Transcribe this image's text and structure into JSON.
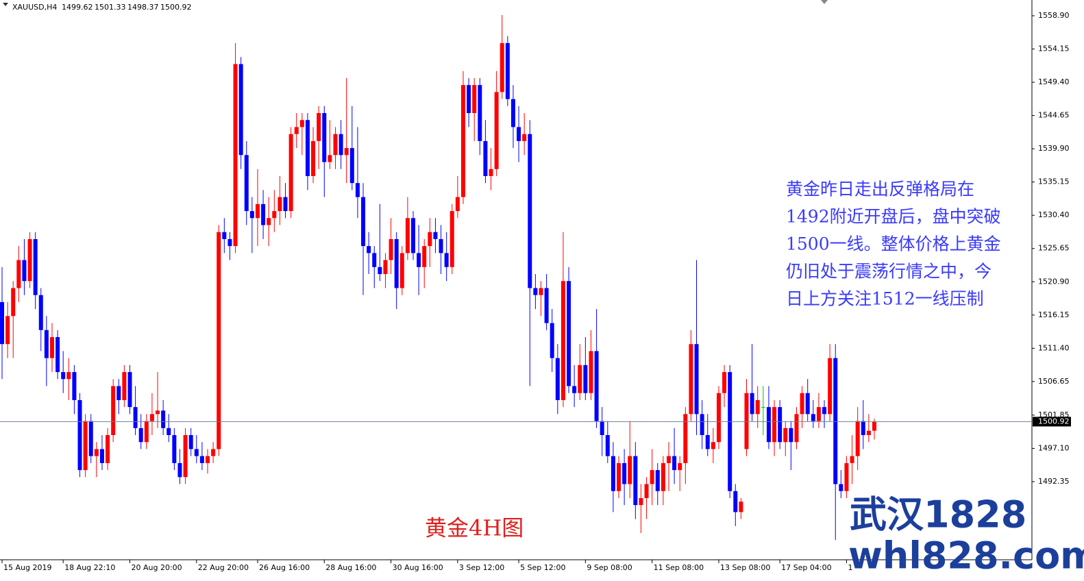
{
  "chart_data": {
    "type": "candlestick",
    "symbol": "XAUUSD,H4",
    "up_color": "#ff0000",
    "down_color": "#0000ff",
    "doji_color": "#00c000",
    "ylim": [
      1481.19,
      1561.15
    ],
    "yticks": [
      {
        "value": 1558.9,
        "label": "1558.90"
      },
      1554.15,
      {
        "value": 1549.4,
        "label": "1549.40"
      },
      1544.65,
      {
        "value": 1539.9,
        "label": "1539.90"
      },
      1535.15,
      {
        "value": 1530.4,
        "label": "1530.40"
      },
      1525.65,
      {
        "value": 1520.9,
        "label": "1520.90"
      },
      1516.15,
      {
        "value": 1511.4,
        "label": "1511.40"
      },
      1506.65,
      1501.85,
      {
        "value": 1497.1,
        "label": "1497.10"
      },
      1492.35
    ],
    "xticks": [
      {
        "value": 0,
        "label": "15 Aug 2019"
      },
      {
        "value": 11,
        "label": "18 Aug 22:10"
      },
      {
        "value": 23,
        "label": "20 Aug 20:00"
      },
      {
        "value": 35,
        "label": "22 Aug 20:00"
      },
      {
        "value": 46,
        "label": "26 Aug 16:00"
      },
      {
        "value": 58,
        "label": "28 Aug 16:00"
      },
      {
        "value": 70,
        "label": "30 Aug 16:00"
      },
      {
        "value": 82,
        "label": "3 Sep 12:00"
      },
      {
        "value": 93,
        "label": "5 Sep 12:00"
      },
      {
        "value": 105,
        "label": "9 Sep 08:00"
      },
      {
        "value": 117,
        "label": "11 Sep 08:00"
      },
      {
        "value": 129,
        "label": "13 Sep 08:00"
      },
      {
        "value": 140,
        "label": "17 Sep 04:00"
      },
      {
        "value": 152,
        "label": "1"
      }
    ],
    "ohlc": [
      [
        1518,
        1523,
        1507,
        1512
      ],
      [
        1512,
        1518,
        1510,
        1516
      ],
      [
        1516,
        1521,
        1510,
        1520
      ],
      [
        1520,
        1526,
        1518,
        1524
      ],
      [
        1524,
        1527,
        1519,
        1521
      ],
      [
        1521,
        1528,
        1520,
        1527
      ],
      [
        1527,
        1528,
        1517,
        1519
      ],
      [
        1519,
        1520,
        1511,
        1514
      ],
      [
        1514,
        1516,
        1506,
        1510
      ],
      [
        1510,
        1515,
        1508,
        1513
      ],
      [
        1513,
        1514,
        1507,
        1508
      ],
      [
        1508,
        1511,
        1505,
        1507
      ],
      [
        1507,
        1510,
        1504,
        1508
      ],
      [
        1508,
        1509,
        1502,
        1504
      ],
      [
        1504,
        1505,
        1493,
        1494
      ],
      [
        1494,
        1502,
        1493,
        1501
      ],
      [
        1501,
        1502,
        1495,
        1496
      ],
      [
        1496,
        1498,
        1493,
        1497
      ],
      [
        1497,
        1499,
        1494,
        1495
      ],
      [
        1495,
        1500,
        1494,
        1499
      ],
      [
        1499,
        1507,
        1498,
        1506
      ],
      [
        1506,
        1507,
        1502,
        1504
      ],
      [
        1504,
        1509,
        1503,
        1508
      ],
      [
        1508,
        1509,
        1502,
        1503
      ],
      [
        1503,
        1506,
        1499,
        1500
      ],
      [
        1500,
        1502,
        1497,
        1498
      ],
      [
        1498,
        1502,
        1497,
        1501
      ],
      [
        1501,
        1505,
        1499,
        1502
      ],
      [
        1502,
        1508,
        1500,
        1502.5
      ],
      [
        1502.5,
        1504,
        1499,
        1500
      ],
      [
        1500,
        1502,
        1498,
        1499
      ],
      [
        1499,
        1500,
        1494,
        1495
      ],
      [
        1495,
        1497,
        1492,
        1493
      ],
      [
        1493,
        1500,
        1492,
        1499
      ],
      [
        1499,
        1500,
        1496,
        1497
      ],
      [
        1497,
        1499,
        1495,
        1496
      ],
      [
        1496,
        1498,
        1494,
        1495
      ],
      [
        1495,
        1497,
        1493.5,
        1496
      ],
      [
        1496,
        1498,
        1495,
        1497
      ],
      [
        1497,
        1529,
        1496,
        1528
      ],
      [
        1528,
        1530,
        1525,
        1527
      ],
      [
        1527,
        1528,
        1524,
        1526
      ],
      [
        1526,
        1555,
        1525,
        1552
      ],
      [
        1552,
        1553,
        1537,
        1539
      ],
      [
        1539,
        1541,
        1529,
        1531
      ],
      [
        1531,
        1533,
        1525,
        1530
      ],
      [
        1530,
        1537,
        1526,
        1532
      ],
      [
        1532,
        1534,
        1527,
        1529
      ],
      [
        1529,
        1533,
        1526,
        1530
      ],
      [
        1530,
        1534,
        1528,
        1531
      ],
      [
        1531,
        1536,
        1529,
        1533
      ],
      [
        1533,
        1535,
        1530,
        1531
      ],
      [
        1531,
        1543,
        1530,
        1542
      ],
      [
        1542,
        1545,
        1540,
        1543
      ],
      [
        1543,
        1545,
        1539,
        1544
      ],
      [
        1544,
        1545,
        1534,
        1536
      ],
      [
        1536,
        1543,
        1535,
        1541
      ],
      [
        1541,
        1546,
        1537,
        1545
      ],
      [
        1545,
        1546,
        1533,
        1538
      ],
      [
        1538,
        1544,
        1537,
        1539
      ],
      [
        1539,
        1543,
        1537,
        1542
      ],
      [
        1542,
        1544,
        1537,
        1539
      ],
      [
        1539,
        1550,
        1535,
        1540
      ],
      [
        1540,
        1546,
        1534,
        1535
      ],
      [
        1535,
        1543,
        1530,
        1533
      ],
      [
        1533,
        1535,
        1519,
        1526
      ],
      [
        1526,
        1528,
        1522,
        1525
      ],
      [
        1525,
        1526,
        1520,
        1523
      ],
      [
        1523,
        1532,
        1521,
        1522
      ],
      [
        1522,
        1525,
        1520,
        1524
      ],
      [
        1524,
        1530,
        1522,
        1527
      ],
      [
        1527,
        1528,
        1517,
        1520
      ],
      [
        1520,
        1526,
        1519,
        1525
      ],
      [
        1525,
        1533,
        1524,
        1530
      ],
      [
        1530,
        1531,
        1524,
        1525
      ],
      [
        1525,
        1529,
        1519,
        1523
      ],
      [
        1523,
        1527,
        1520,
        1526
      ],
      [
        1526,
        1530,
        1523,
        1528
      ],
      [
        1528,
        1530,
        1525,
        1527
      ],
      [
        1527,
        1529,
        1522,
        1525
      ],
      [
        1525,
        1528,
        1521,
        1523
      ],
      [
        1523,
        1532,
        1522,
        1531
      ],
      [
        1531,
        1536,
        1530,
        1533
      ],
      [
        1533,
        1551,
        1532,
        1549
      ],
      [
        1549,
        1550,
        1543,
        1545
      ],
      [
        1545,
        1550,
        1541,
        1549
      ],
      [
        1549,
        1550,
        1539,
        1541
      ],
      [
        1541,
        1544,
        1535,
        1536
      ],
      [
        1536,
        1540,
        1534,
        1537
      ],
      [
        1537,
        1551,
        1536,
        1548
      ],
      [
        1548,
        1559,
        1547,
        1555
      ],
      [
        1555,
        1556,
        1546,
        1547
      ],
      [
        1547,
        1549,
        1540,
        1543
      ],
      [
        1543,
        1546,
        1538,
        1541
      ],
      [
        1541,
        1545,
        1539,
        1542
      ],
      [
        1542,
        1544,
        1506,
        1520
      ],
      [
        1520,
        1522,
        1517,
        1519
      ],
      [
        1519,
        1521,
        1516,
        1520
      ],
      [
        1520,
        1522,
        1514,
        1515
      ],
      [
        1515,
        1517,
        1508,
        1510
      ],
      [
        1510,
        1512,
        1502,
        1504
      ],
      [
        1504,
        1528,
        1503,
        1521
      ],
      [
        1521,
        1523,
        1505,
        1506
      ],
      [
        1506,
        1509,
        1503,
        1505
      ],
      [
        1505,
        1512,
        1504,
        1509
      ],
      [
        1509,
        1513,
        1504,
        1505
      ],
      [
        1505,
        1514,
        1504,
        1511
      ],
      [
        1511,
        1517,
        1500,
        1501
      ],
      [
        1501,
        1503,
        1496,
        1499
      ],
      [
        1499,
        1501,
        1495,
        1496
      ],
      [
        1496,
        1498,
        1488,
        1491
      ],
      [
        1491,
        1496,
        1490,
        1495
      ],
      [
        1495,
        1497,
        1489,
        1492
      ],
      [
        1492,
        1501,
        1490,
        1496
      ],
      [
        1496,
        1498,
        1487,
        1489
      ],
      [
        1489,
        1492,
        1485,
        1490
      ],
      [
        1490,
        1493,
        1487,
        1492
      ],
      [
        1492,
        1497,
        1489,
        1494
      ],
      [
        1494,
        1495,
        1489,
        1491
      ],
      [
        1491,
        1496,
        1489,
        1495
      ],
      [
        1495,
        1498,
        1491,
        1496
      ],
      [
        1496,
        1500,
        1492,
        1494
      ],
      [
        1494,
        1496,
        1491,
        1495
      ],
      [
        1495,
        1503,
        1492,
        1502
      ],
      [
        1502,
        1514,
        1501,
        1512
      ],
      [
        1512,
        1524,
        1499,
        1502
      ],
      [
        1502,
        1504,
        1497,
        1499
      ],
      [
        1499,
        1502,
        1496,
        1497
      ],
      [
        1497,
        1500,
        1495,
        1498
      ],
      [
        1498,
        1506,
        1497,
        1505
      ],
      [
        1505,
        1509,
        1503,
        1508
      ],
      [
        1508,
        1509,
        1490,
        1491
      ],
      [
        1491,
        1492,
        1486,
        1488
      ],
      [
        1488,
        1490,
        1487,
        1489.5
      ],
      [
        1497,
        1507,
        1496,
        1505
      ],
      [
        1505,
        1512,
        1501,
        1502
      ],
      [
        1502,
        1506,
        1500,
        1504
      ],
      [
        1503,
        1506,
        1499,
        1503
      ],
      [
        1503,
        1506,
        1497,
        1498
      ],
      [
        1498,
        1504,
        1496,
        1503
      ],
      [
        1503,
        1504,
        1497,
        1498
      ],
      [
        1498,
        1501,
        1496,
        1500
      ],
      [
        1500,
        1501,
        1494,
        1498
      ],
      [
        1498,
        1503,
        1497,
        1502
      ],
      [
        1502,
        1506,
        1500,
        1505
      ],
      [
        1505,
        1507,
        1501,
        1502
      ],
      [
        1502,
        1504,
        1500,
        1501
      ],
      [
        1501,
        1505,
        1500,
        1503
      ],
      [
        1503,
        1504,
        1500,
        1502
      ],
      [
        1502,
        1512,
        1501,
        1510
      ],
      [
        1510,
        1512,
        1484,
        1492
      ],
      [
        1492,
        1494,
        1490,
        1491
      ],
      [
        1491,
        1496,
        1490,
        1495
      ],
      [
        1495,
        1499,
        1492,
        1496
      ],
      [
        1496,
        1503,
        1494,
        1501
      ],
      [
        1501,
        1504,
        1497,
        1499
      ],
      [
        1499,
        1502,
        1498,
        1499.62
      ],
      [
        1499.62,
        1501.33,
        1498.37,
        1500.92
      ]
    ],
    "annotation_lines": [
      "黄金昨日走出反弹格局在",
      "1492附近开盘后，盘中突破",
      "1500一线。整体价格上黄金",
      "仍旧处于震荡行情之中，今",
      "日上方关注1512一线压制"
    ],
    "caption": "黄金4H图",
    "watermark": [
      "武汉1828",
      "whl828.com"
    ]
  }
}
